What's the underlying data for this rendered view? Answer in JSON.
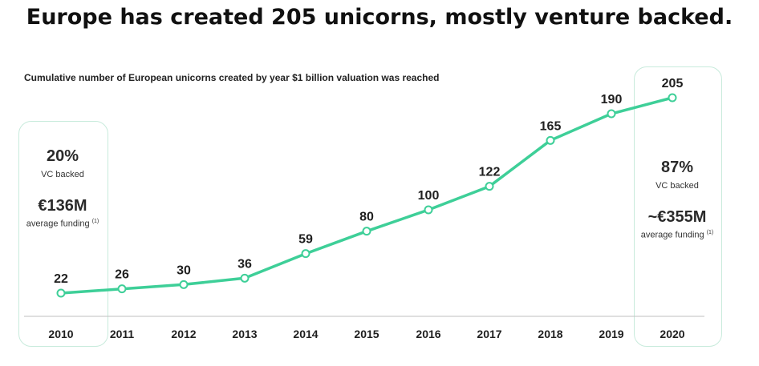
{
  "header": {
    "title": "Europe has created 205 unicorns, mostly venture backed.",
    "subtitle": "Cumulative number of European unicorns created by year $1 billion valuation was reached"
  },
  "left_panel": {
    "pct": "20%",
    "pct_label": "VC backed",
    "funding": "€136M",
    "funding_label": "average funding",
    "note": "(1)"
  },
  "right_panel": {
    "pct": "87%",
    "pct_label": "VC backed",
    "funding": "~€355M",
    "funding_label": "average funding",
    "note": "(1)"
  },
  "colors": {
    "line": "#3ecf98",
    "axis": "#bfbfbf",
    "box_border": "#c8ebdc"
  },
  "chart_data": {
    "type": "line",
    "title": "Cumulative number of European unicorns created by year $1 billion valuation was reached",
    "xlabel": "",
    "ylabel": "",
    "x": [
      "2010",
      "2011",
      "2012",
      "2013",
      "2014",
      "2015",
      "2016",
      "2017",
      "2018",
      "2019",
      "2020"
    ],
    "series": [
      {
        "values": [
          22,
          26,
          30,
          36,
          59,
          80,
          100,
          122,
          165,
          190,
          205
        ]
      }
    ],
    "data_labels": [
      "22",
      "26",
      "30",
      "36",
      "59",
      "80",
      "100",
      "122",
      "165",
      "190",
      "205"
    ],
    "ylim": [
      0,
      230
    ],
    "grid": false,
    "legend": "none"
  }
}
